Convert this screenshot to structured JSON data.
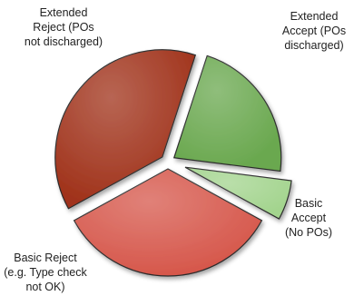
{
  "chart_data": {
    "type": "pie",
    "title": "",
    "legend": "none",
    "exploded": true,
    "slices": [
      {
        "label": [
          "Extended",
          "Accept (POs",
          "discharged)"
        ],
        "value": 22,
        "color": "#6aa84f"
      },
      {
        "label": [
          "Basic",
          "Accept",
          "(No POs)"
        ],
        "value": 6,
        "color": "#a3d48e"
      },
      {
        "label": [
          "Basic Reject",
          "(e.g. Type check",
          "not OK)"
        ],
        "value": 34,
        "color": "#d6574b"
      },
      {
        "label": [
          "Extended",
          "Reject (POs",
          "not discharged)"
        ],
        "value": 38,
        "color": "#a0321a"
      }
    ]
  }
}
